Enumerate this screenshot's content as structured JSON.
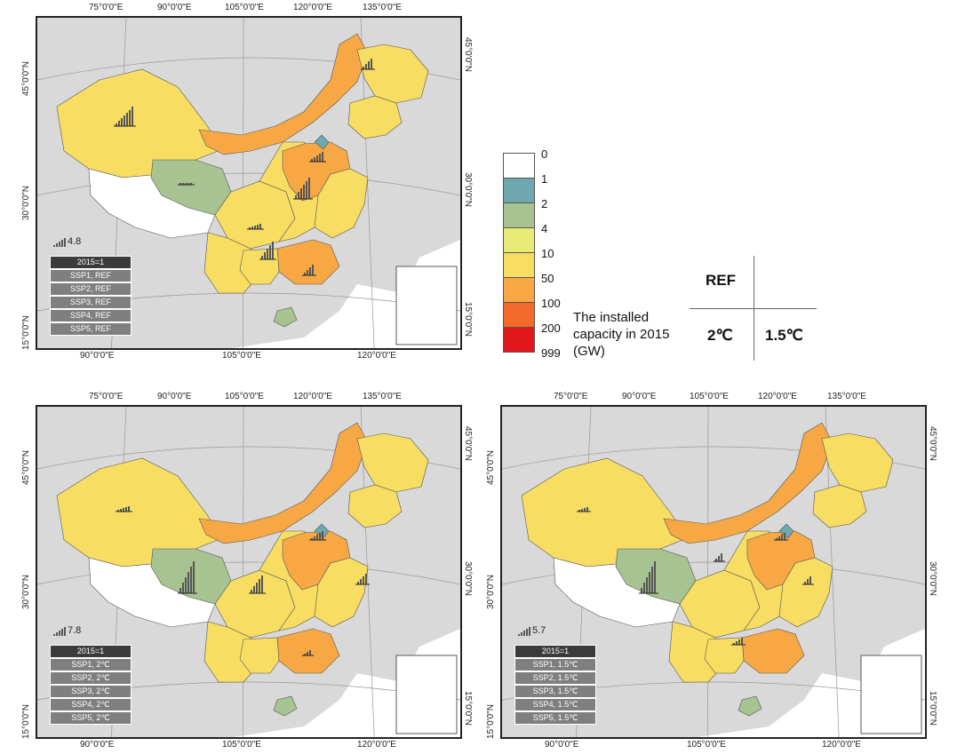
{
  "colorbar": {
    "title_lines": [
      "The installed",
      "capacity in 2015",
      "(GW)"
    ],
    "stops": [
      {
        "label": "0",
        "color": "#ffffff"
      },
      {
        "label": "1",
        "color": "#6fa7ae"
      },
      {
        "label": "2",
        "color": "#a7c391"
      },
      {
        "label": "4",
        "color": "#e8eb76"
      },
      {
        "label": "10",
        "color": "#f8dd63"
      },
      {
        "label": "50",
        "color": "#f7a845"
      },
      {
        "label": "100",
        "color": "#f36a2b"
      },
      {
        "label": "200",
        "color": "#e3181c"
      },
      {
        "label": "999",
        "color": "#e3181c"
      }
    ]
  },
  "scenario_grid": {
    "ref": "REF",
    "two": "2℃",
    "one_five": "1.5℃"
  },
  "maps": [
    {
      "scale": "4.8",
      "legend": [
        "2015=1",
        "SSP1, REF",
        "SSP2, REF",
        "SSP3, REF",
        "SSP4, REF",
        "SSP5, REF"
      ]
    },
    {
      "scale": "7.8",
      "legend": [
        "2015=1",
        "SSP1, 2℃",
        "SSP2, 2℃",
        "SSP3, 2℃",
        "SSP4, 2℃",
        "SSP5, 2℃"
      ]
    },
    {
      "scale": "5.7",
      "legend": [
        "2015=1",
        "SSP1, 1.5℃",
        "SSP2, 1.5℃",
        "SSP3, 1.5℃",
        "SSP4, 1.5℃",
        "SSP5, 1.5℃"
      ]
    }
  ],
  "axes": {
    "top": [
      "75°0'0\"E",
      "90°0'0\"E",
      "105°0'0\"E",
      "120°0'0\"E",
      "135°0'0\"E"
    ],
    "bottom": [
      "90°0'0\"E",
      "105°0'0\"E",
      "120°0'0\"E"
    ],
    "left": [
      "45°0'0\"N",
      "30°0'0\"N",
      "15°0'0\"N"
    ],
    "right": [
      "45°0'0\"N",
      "30°0'0\"N",
      "15°0'0\"N"
    ]
  },
  "colors": {
    "frame": "#222222",
    "ocean": "#ffffff",
    "land_other": "#d9d9d9",
    "bar": "#555555"
  }
}
